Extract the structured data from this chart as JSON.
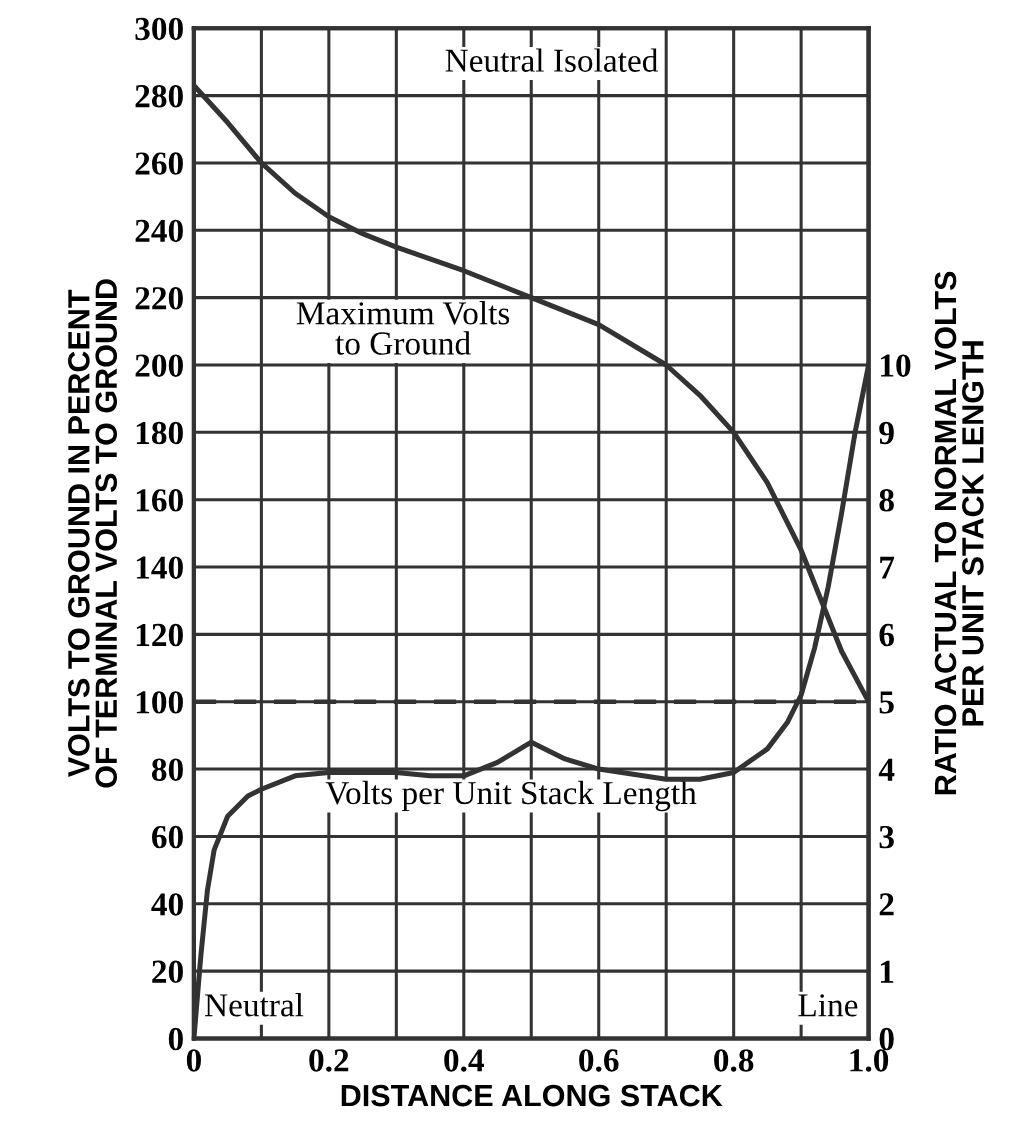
{
  "chart_data": {
    "type": "line",
    "xlabel": "DISTANCE ALONG STACK",
    "ylabel": "VOLTS TO GROUND IN PERCENT\nOF TERMINAL VOLTS TO GROUND",
    "y2label": "RATIO ACTUAL TO NORMAL VOLTS\nPER UNIT STACK LENGTH",
    "series": [
      {
        "color": "#333333",
        "x": [
          0,
          0.05,
          0.1,
          0.15,
          0.2,
          0.25,
          0.3,
          0.4,
          0.5,
          0.6,
          0.7,
          0.75,
          0.8,
          0.85,
          0.9,
          0.93,
          0.96,
          1.0
        ],
        "values": [
          283,
          272,
          260,
          251,
          244,
          239,
          235,
          228,
          220,
          212,
          200,
          191,
          180,
          165,
          145,
          130,
          115,
          100
        ]
      },
      {
        "color": "#333333",
        "axis": "y2",
        "x": [
          0,
          0.01,
          0.02,
          0.03,
          0.05,
          0.08,
          0.1,
          0.15,
          0.2,
          0.3,
          0.35,
          0.4,
          0.45,
          0.5,
          0.55,
          0.6,
          0.7,
          0.75,
          0.8,
          0.85,
          0.88,
          0.9,
          0.92,
          0.94,
          0.96,
          0.98,
          1.0
        ],
        "values": [
          0,
          1.2,
          2.2,
          2.8,
          3.3,
          3.6,
          3.7,
          3.9,
          3.95,
          3.95,
          3.9,
          3.9,
          4.1,
          4.4,
          4.15,
          4.0,
          3.85,
          3.85,
          3.95,
          4.3,
          4.7,
          5.1,
          5.8,
          6.7,
          7.8,
          9.0,
          10.0
        ]
      }
    ],
    "xlim": [
      0,
      1.0
    ],
    "ylim": [
      0,
      300
    ],
    "y2lim": [
      0,
      15
    ],
    "xticks": [
      0,
      {
        "value": 0.1,
        "label": null
      },
      0.2,
      {
        "value": 0.3,
        "label": null
      },
      0.4,
      {
        "value": 0.5,
        "label": null
      },
      0.6,
      {
        "value": 0.7,
        "label": null
      },
      0.8,
      {
        "value": 0.9,
        "label": null
      },
      {
        "value": 1.0,
        "label": "1.0"
      }
    ],
    "yticks": [
      0,
      20,
      40,
      60,
      80,
      100,
      120,
      140,
      160,
      180,
      200,
      220,
      240,
      260,
      280,
      300
    ],
    "y2ticks": [
      0,
      1,
      2,
      3,
      4,
      5,
      6,
      7,
      8,
      9,
      10
    ],
    "ref_lines": [
      {
        "axis": "y",
        "value": 100,
        "color": "#333333",
        "line_style": "dashed"
      }
    ],
    "annotations": [
      "Neutral Isolated",
      "Maximum Volts\nto Ground",
      "Volts per Unit Stack Length",
      "Neutral",
      "Line"
    ],
    "grid": true,
    "line_style": "solid",
    "marker": "none"
  }
}
